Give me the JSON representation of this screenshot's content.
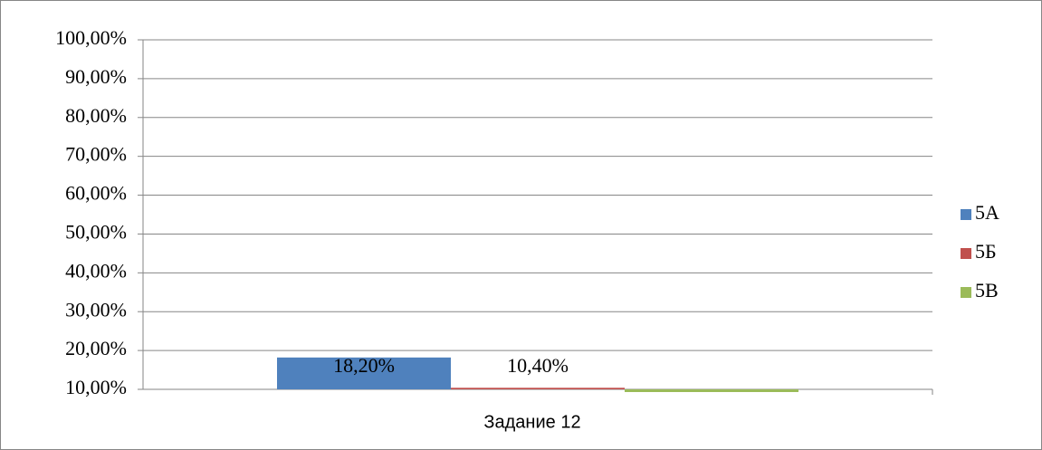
{
  "chart_data": {
    "type": "bar",
    "categories": [
      "Задание 12"
    ],
    "series": [
      {
        "name": "5А",
        "color": "#4f81bd",
        "values": [
          18.2
        ],
        "value_labels": [
          "18,20%"
        ]
      },
      {
        "name": "5Б",
        "color": "#c0504d",
        "values": [
          10.4
        ],
        "value_labels": [
          "10,40%"
        ]
      },
      {
        "name": "5В",
        "color": "#9bbb59",
        "values": [
          9.3
        ]
      }
    ],
    "ylim": [
      10,
      100
    ],
    "yticks": [
      {
        "value": 10,
        "label": "10,00%"
      },
      {
        "value": 20,
        "label": "20,00%"
      },
      {
        "value": 30,
        "label": "30,00%"
      },
      {
        "value": 40,
        "label": "40,00%"
      },
      {
        "value": 50,
        "label": "50,00%"
      },
      {
        "value": 60,
        "label": "60,00%"
      },
      {
        "value": 70,
        "label": "70,00%"
      },
      {
        "value": 80,
        "label": "80,00%"
      },
      {
        "value": 90,
        "label": "90,00%"
      },
      {
        "value": 100,
        "label": "100,00%"
      }
    ],
    "grid": true,
    "legend": "right"
  }
}
